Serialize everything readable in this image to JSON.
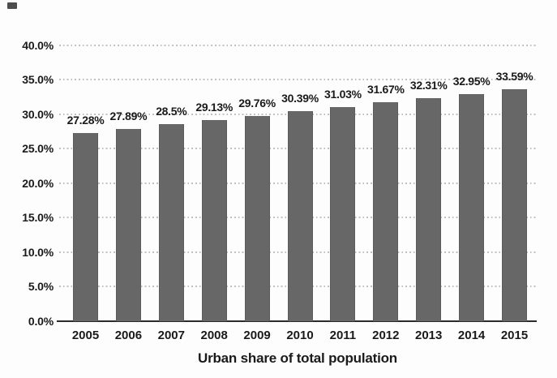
{
  "chart_data": {
    "type": "bar",
    "title": "Urban share of total population",
    "title_position": "below-x-axis",
    "categories": [
      "2005",
      "2006",
      "2007",
      "2008",
      "2009",
      "2010",
      "2011",
      "2012",
      "2013",
      "2014",
      "2015"
    ],
    "values": [
      27.28,
      27.89,
      28.5,
      29.13,
      29.76,
      30.39,
      31.03,
      31.67,
      32.31,
      32.95,
      33.59
    ],
    "data_labels": [
      "27.28%",
      "27.89%",
      "28.5%",
      "29.13%",
      "29.76%",
      "30.39%",
      "31.03%",
      "31.67%",
      "32.31%",
      "32.95%",
      "33.59%"
    ],
    "y_ticks": [
      "0.0%",
      "5.0%",
      "10.0%",
      "15.0%",
      "20.0%",
      "25.0%",
      "30.0%",
      "35.0%",
      "40.0%"
    ],
    "ylim": [
      0,
      40
    ],
    "y_tick_step": 5,
    "xlabel": "",
    "ylabel": "",
    "grid": "horizontal-dotted",
    "legend": "none",
    "colors": {
      "bar": "#676767",
      "gridline": "#bdbdbd",
      "axis_line": "#2b2b2b",
      "text": "#1a1a1a",
      "background": "#fdfdfd"
    }
  }
}
